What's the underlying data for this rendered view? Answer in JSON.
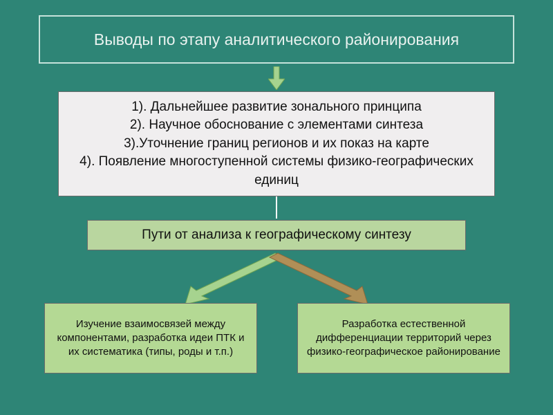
{
  "slide": {
    "background_color": "#2e8576",
    "title": {
      "text": "Выводы по этапу аналитического районирования",
      "bg": "#2e8576",
      "border": "#c6e3db",
      "color": "#e9f2ef",
      "fontsize": 23
    },
    "arrow_down": {
      "fill": "#a6d38f",
      "stroke": "#6ea352"
    },
    "main_box": {
      "lines": [
        "1). Дальнейшее развитие зонального принципа",
        "2). Научное обоснование с элементами синтеза",
        "3).Уточнение границ регионов и их показ на карте",
        "4). Появление многоступенной системы физико-географических единиц"
      ],
      "bg": "#f0eeef",
      "color": "#111111",
      "fontsize": 19
    },
    "connector_color": "#ffffff",
    "sub_box": {
      "text": "Пути от анализа к географическому синтезу",
      "bg": "#b9d69f",
      "color": "#111111",
      "fontsize": 19
    },
    "branch_arrows": {
      "left": {
        "fill": "#a6d38f",
        "stroke": "#6ea352"
      },
      "right": {
        "fill": "#b08f57",
        "stroke": "#8a6a3c"
      }
    },
    "leaf_left": {
      "text": "Изучение взаимосвязей между компонентами, разработка идеи ПТК и их систематика  (типы, роды и т.п.)",
      "bg": "#b4d994",
      "fontsize": 15
    },
    "leaf_right": {
      "text": "Разработка естественной дифференциации территорий через физико-географическое районирование",
      "bg": "#b4d994",
      "fontsize": 15
    }
  }
}
